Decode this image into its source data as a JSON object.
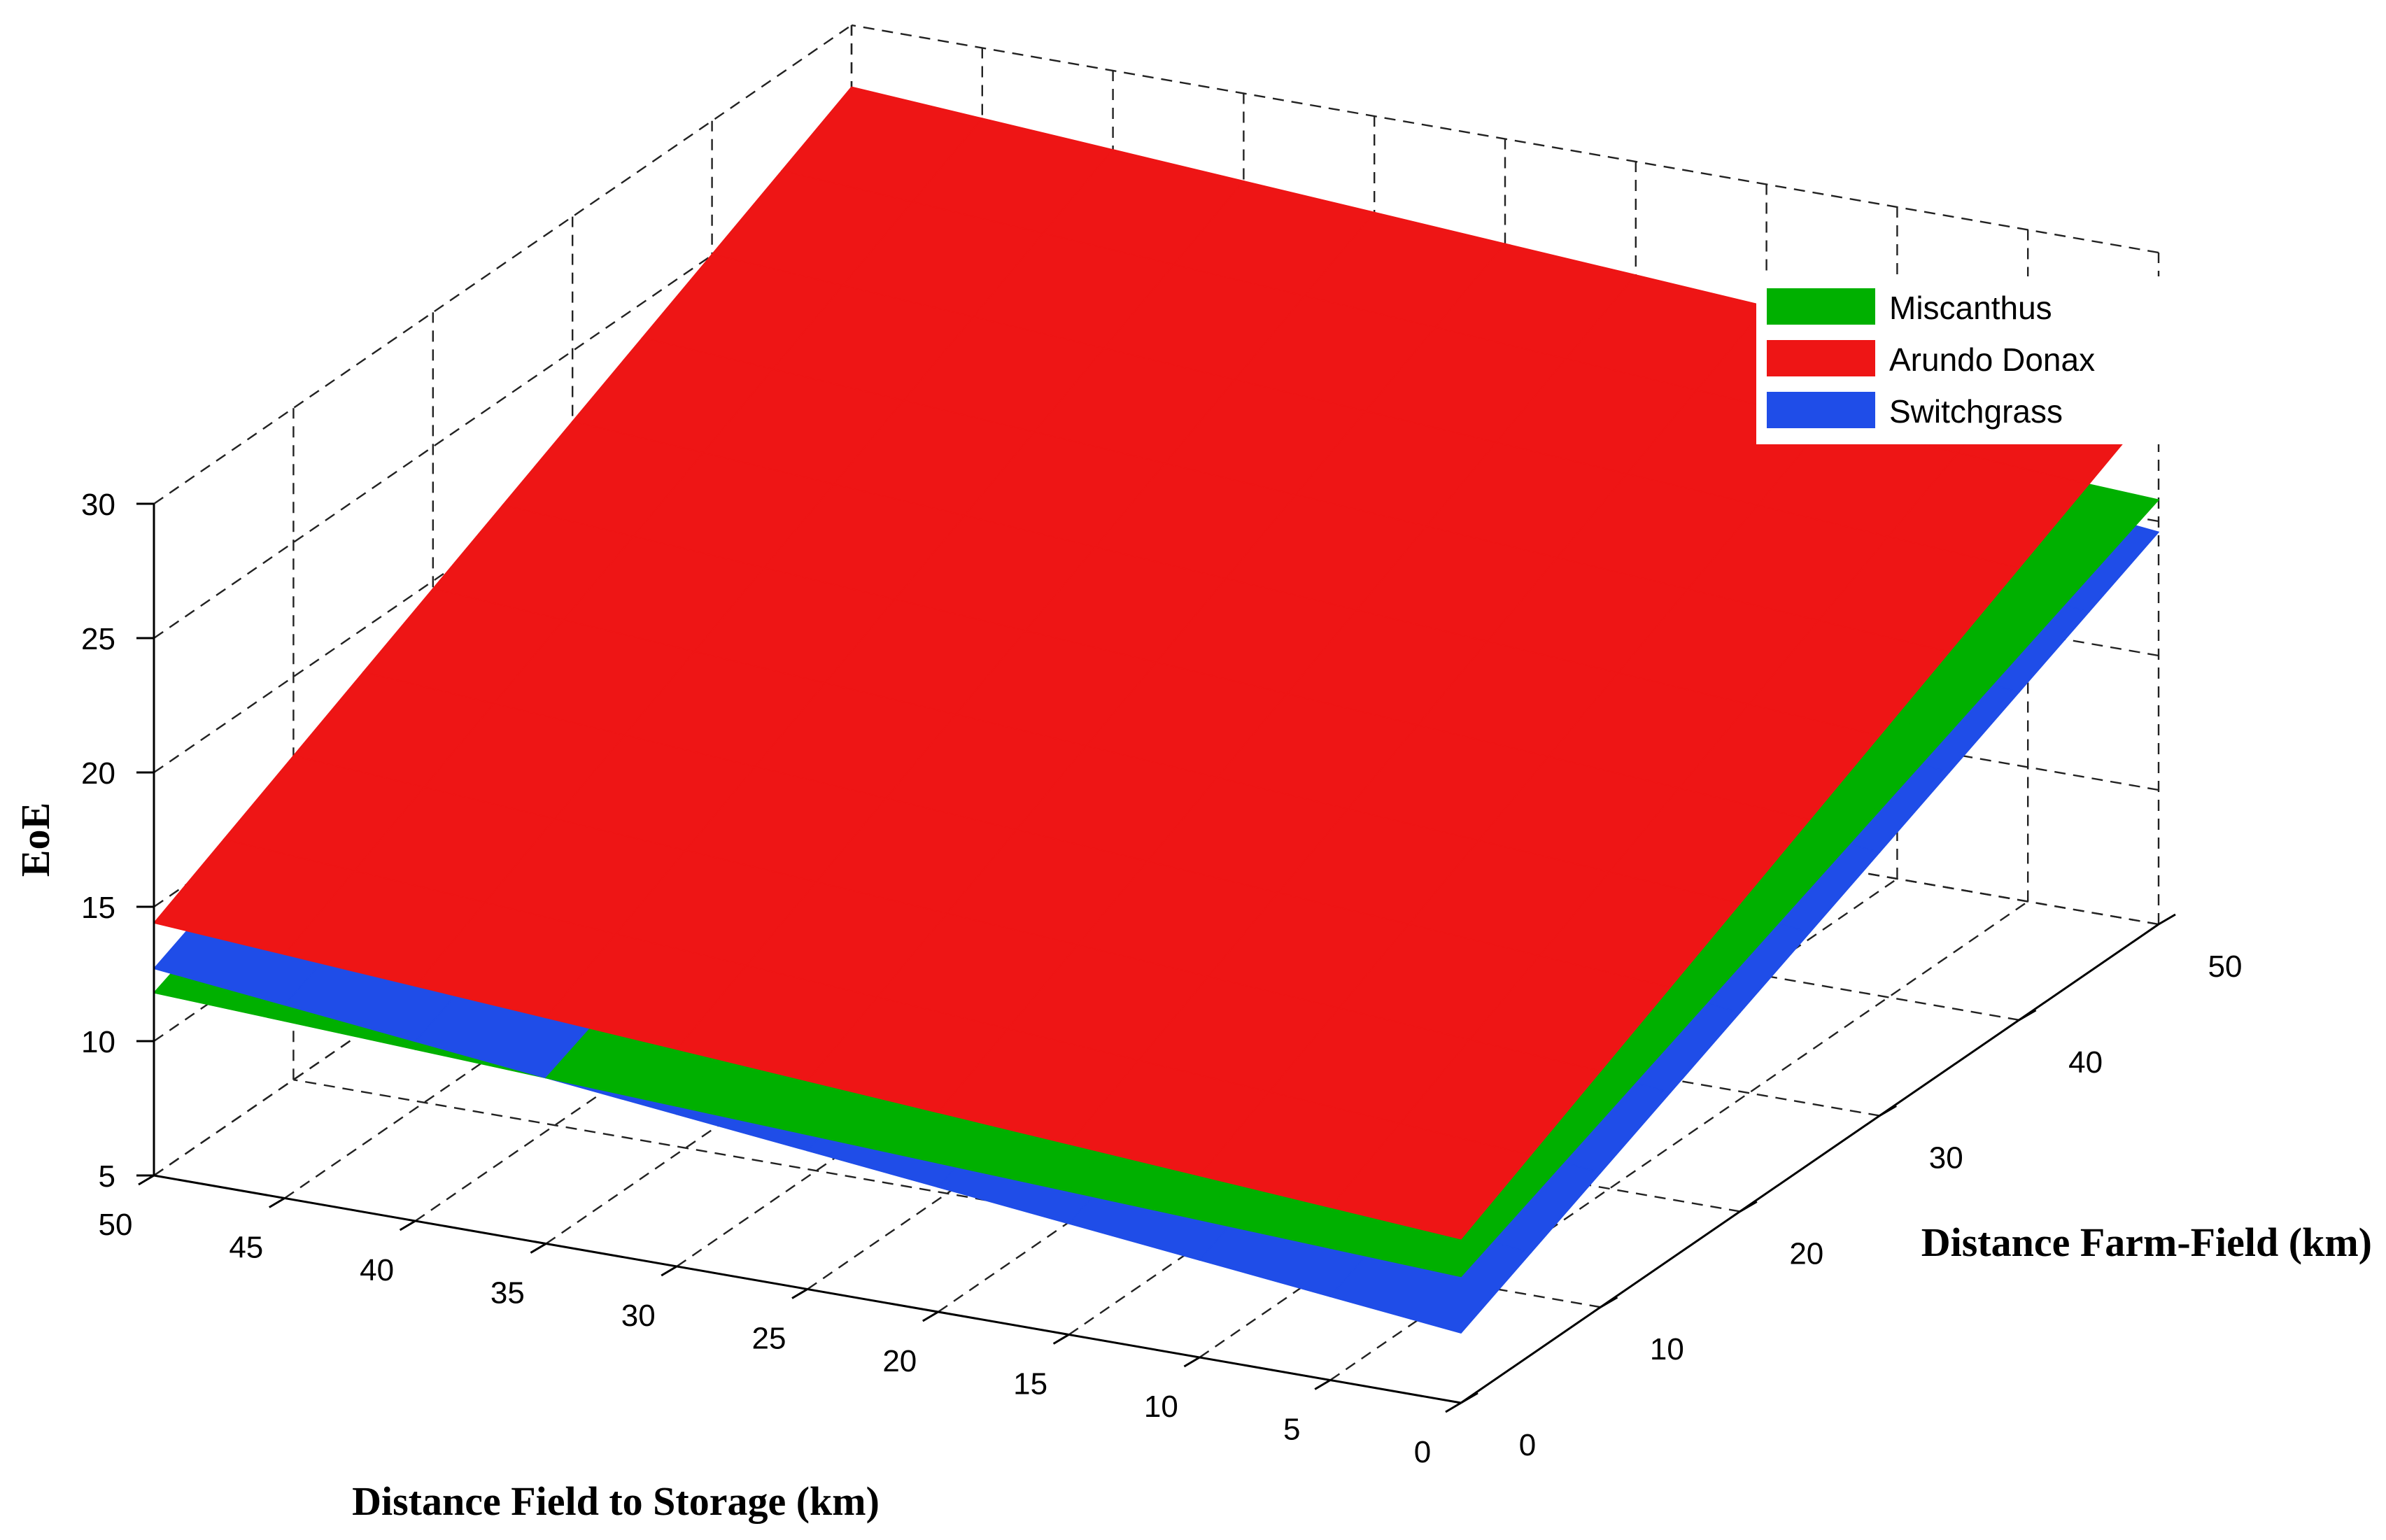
{
  "chart_data": {
    "type": "surface",
    "title": "",
    "zlabel": "EoE",
    "xlabel": "Distance Field to Storage (km)",
    "ylabel": "Distance Farm-Field (km)",
    "xlim": [
      0,
      50
    ],
    "ylim": [
      0,
      50
    ],
    "zlim": [
      5,
      30
    ],
    "x_ticks": [
      0,
      5,
      10,
      15,
      20,
      25,
      30,
      35,
      40,
      45,
      50
    ],
    "y_ticks": [
      0,
      10,
      20,
      30,
      40,
      50
    ],
    "z_ticks": [
      5,
      10,
      15,
      20,
      25,
      30
    ],
    "grid": true,
    "legend_position": "top-right",
    "series": [
      {
        "name": "Miscanthus",
        "color": "#00b000",
        "corners": [
          {
            "x": 0,
            "y": 0,
            "z": 9.7
          },
          {
            "x": 50,
            "y": 0,
            "z": 11.8
          },
          {
            "x": 0,
            "y": 50,
            "z": 20.8
          },
          {
            "x": 50,
            "y": 50,
            "z": 23.2
          }
        ]
      },
      {
        "name": "Arundo Donax",
        "color": "#ee1515",
        "corners": [
          {
            "x": 0,
            "y": 0,
            "z": 11.1
          },
          {
            "x": 50,
            "y": 0,
            "z": 14.4
          },
          {
            "x": 0,
            "y": 50,
            "z": 24.5
          },
          {
            "x": 50,
            "y": 50,
            "z": 27.7
          }
        ]
      },
      {
        "name": "Switchgrass",
        "color": "#1f4de8",
        "corners": [
          {
            "x": 0,
            "y": 0,
            "z": 7.6
          },
          {
            "x": 50,
            "y": 0,
            "z": 12.7
          },
          {
            "x": 0,
            "y": 50,
            "z": 19.6
          },
          {
            "x": 50,
            "y": 50,
            "z": 24.7
          }
        ]
      }
    ]
  }
}
